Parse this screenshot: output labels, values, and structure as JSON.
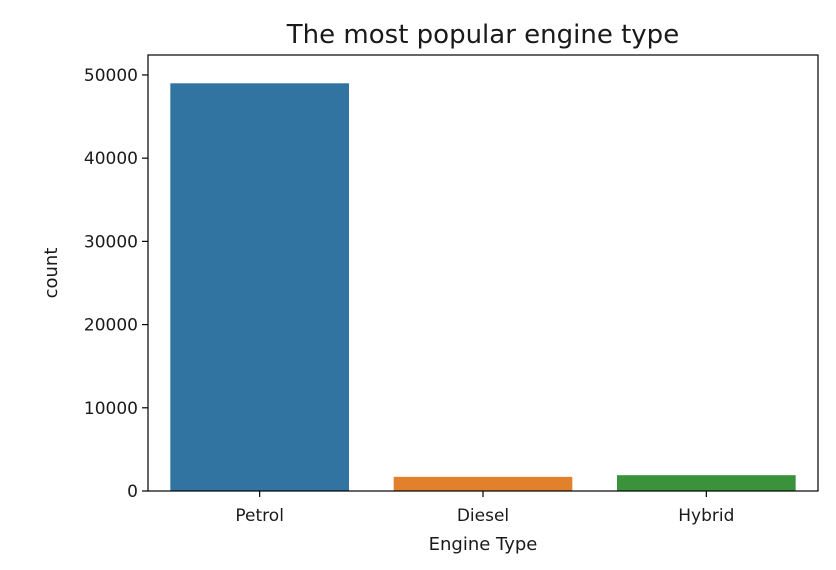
{
  "chart_data": {
    "type": "bar",
    "title": "The most popular engine type",
    "xlabel": "Engine Type",
    "ylabel": "count",
    "categories": [
      "Petrol",
      "Diesel",
      "Hybrid"
    ],
    "values": [
      49000,
      1700,
      1900
    ],
    "colors": [
      "#3274a1",
      "#e1812c",
      "#3a923a"
    ],
    "ylim": [
      0,
      52400
    ],
    "yticks": [
      0,
      10000,
      20000,
      30000,
      40000,
      50000
    ],
    "grid": false,
    "legend": "none"
  }
}
